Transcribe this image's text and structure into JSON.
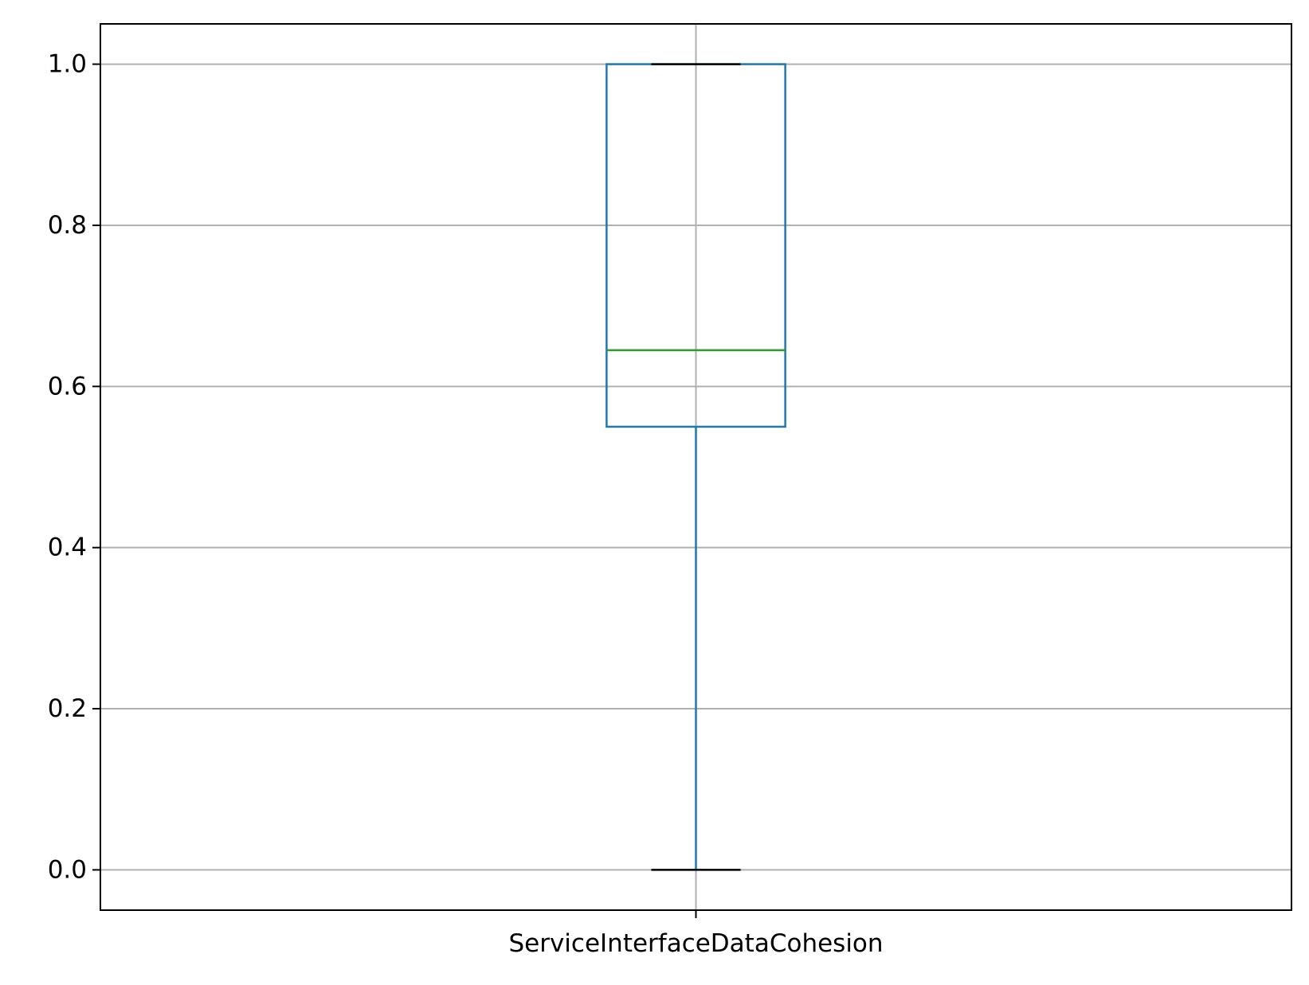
{
  "chart_data": {
    "type": "box",
    "categories": [
      "ServiceInterfaceDataCohesion"
    ],
    "series": [
      {
        "whisker_low": 0.0,
        "q1": 0.55,
        "median": 0.645,
        "q3": 1.0,
        "whisker_high": 1.0
      }
    ],
    "ylim": [
      -0.05,
      1.05
    ],
    "yticks": [
      0.0,
      0.2,
      0.4,
      0.6,
      0.8,
      1.0
    ],
    "ytick_labels": [
      "0.0",
      "0.2",
      "0.4",
      "0.6",
      "0.8",
      "1.0"
    ],
    "grid": true,
    "colors": {
      "box": "#1f77b4",
      "median": "#2ca02c",
      "cap": "#000000",
      "grid": "#b0b0b0",
      "axes": "#000000"
    }
  }
}
